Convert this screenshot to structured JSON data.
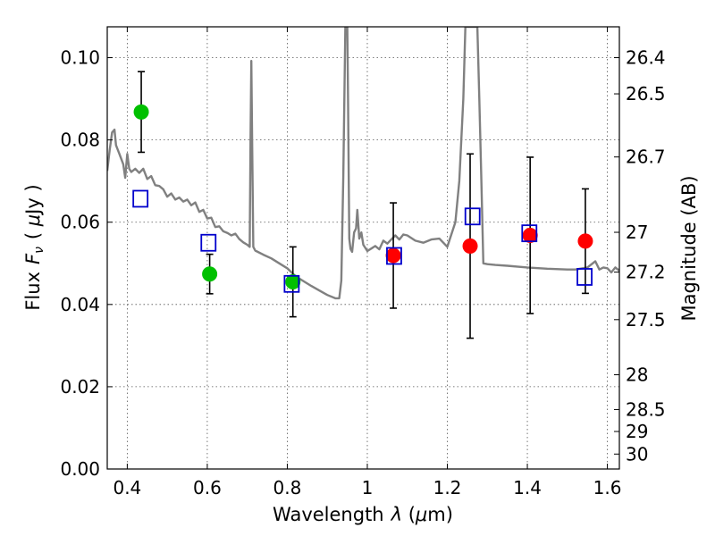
{
  "chart_data": {
    "type": "scatter",
    "xlabel": "Wavelength",
    "xlabel_symbol": "λ",
    "xlabel_unit_open": " (",
    "xlabel_unit_mu": "μ",
    "xlabel_unit_close": "m)",
    "ylabel": "Flux",
    "ylabel_symbol": "F",
    "ylabel_symbol_sub": "ν",
    "ylabel_unit_open": "( ",
    "ylabel_unit_mu": "μ",
    "ylabel_unit_close": "Jy )",
    "y2label": "Magnitude (AB)",
    "xlim": [
      0.35,
      1.63
    ],
    "ylim": [
      0.0,
      0.1075
    ],
    "grid": true,
    "x_ticks": [
      {
        "value": 0.4,
        "label": "0.4"
      },
      {
        "value": 0.6,
        "label": "0.6"
      },
      {
        "value": 0.8,
        "label": "0.8"
      },
      {
        "value": 1.0,
        "label": "1"
      },
      {
        "value": 1.2,
        "label": "1.2"
      },
      {
        "value": 1.4,
        "label": "1.4"
      },
      {
        "value": 1.6,
        "label": "1.6"
      }
    ],
    "y_ticks": [
      {
        "value": 0.0,
        "label": "0.00"
      },
      {
        "value": 0.02,
        "label": "0.02"
      },
      {
        "value": 0.04,
        "label": "0.04"
      },
      {
        "value": 0.06,
        "label": "0.06"
      },
      {
        "value": 0.08,
        "label": "0.08"
      },
      {
        "value": 0.1,
        "label": "0.10"
      }
    ],
    "y2_ticks": [
      {
        "value": 26.4,
        "label": "26.4"
      },
      {
        "value": 26.5,
        "label": "26.5"
      },
      {
        "value": 26.7,
        "label": "26.7"
      },
      {
        "value": 27.0,
        "label": "27"
      },
      {
        "value": 27.2,
        "label": "27.2"
      },
      {
        "value": 27.5,
        "label": "27.5"
      },
      {
        "value": 28.0,
        "label": "28"
      },
      {
        "value": 28.5,
        "label": "28.5"
      },
      {
        "value": 29.0,
        "label": "29"
      },
      {
        "value": 30.0,
        "label": "30"
      }
    ],
    "series": [
      {
        "marker": "filled-circle",
        "color": "#00c000",
        "points": [
          {
            "x": 0.435,
            "y": 0.0868,
            "err": 0.0098
          },
          {
            "x": 0.606,
            "y": 0.0474,
            "err": 0.0048
          },
          {
            "x": 0.814,
            "y": 0.0455,
            "err": 0.0085
          }
        ]
      },
      {
        "marker": "filled-circle",
        "color": "#ff0000",
        "points": [
          {
            "x": 1.065,
            "y": 0.0519,
            "err": 0.0128
          },
          {
            "x": 1.257,
            "y": 0.0542,
            "err": 0.0224
          },
          {
            "x": 1.407,
            "y": 0.0568,
            "err": 0.019
          },
          {
            "x": 1.545,
            "y": 0.0554,
            "err": 0.0127
          }
        ]
      },
      {
        "marker": "open-square",
        "color": "#0000cc",
        "points": [
          {
            "x": 0.433,
            "y": 0.0657
          },
          {
            "x": 0.603,
            "y": 0.055
          },
          {
            "x": 0.811,
            "y": 0.045
          },
          {
            "x": 1.067,
            "y": 0.0518
          },
          {
            "x": 1.263,
            "y": 0.0614
          },
          {
            "x": 1.405,
            "y": 0.0573
          },
          {
            "x": 1.543,
            "y": 0.0467
          }
        ]
      },
      {
        "type": "line",
        "color": "#808080",
        "x": [
          0.35,
          0.356,
          0.362,
          0.368,
          0.372,
          0.38,
          0.39,
          0.395,
          0.4,
          0.405,
          0.41,
          0.42,
          0.43,
          0.44,
          0.45,
          0.46,
          0.47,
          0.48,
          0.49,
          0.5,
          0.51,
          0.52,
          0.53,
          0.54,
          0.55,
          0.56,
          0.57,
          0.58,
          0.59,
          0.6,
          0.61,
          0.62,
          0.63,
          0.64,
          0.65,
          0.66,
          0.67,
          0.68,
          0.69,
          0.7,
          0.706,
          0.708,
          0.71,
          0.712,
          0.715,
          0.72,
          0.74,
          0.76,
          0.78,
          0.8,
          0.82,
          0.84,
          0.86,
          0.88,
          0.9,
          0.92,
          0.93,
          0.935,
          0.94,
          0.945,
          0.948,
          0.95,
          0.952,
          0.955,
          0.958,
          0.962,
          0.967,
          0.972,
          0.975,
          0.98,
          0.985,
          0.99,
          1.0,
          1.01,
          1.02,
          1.03,
          1.04,
          1.05,
          1.06,
          1.07,
          1.08,
          1.09,
          1.1,
          1.12,
          1.14,
          1.16,
          1.18,
          1.2,
          1.22,
          1.23,
          1.24,
          1.245,
          1.248,
          1.25,
          1.255,
          1.26,
          1.27,
          1.275,
          1.28,
          1.285,
          1.29,
          1.3,
          1.32,
          1.35,
          1.4,
          1.45,
          1.5,
          1.52,
          1.55,
          1.57,
          1.58,
          1.59,
          1.6,
          1.61,
          1.62,
          1.63
        ],
        "y": [
          0.0725,
          0.0775,
          0.0818,
          0.0825,
          0.0787,
          0.0767,
          0.0741,
          0.0708,
          0.0766,
          0.073,
          0.0722,
          0.073,
          0.072,
          0.073,
          0.0705,
          0.0712,
          0.069,
          0.0688,
          0.068,
          0.0662,
          0.067,
          0.0655,
          0.066,
          0.065,
          0.0655,
          0.0641,
          0.0648,
          0.0625,
          0.063,
          0.0609,
          0.0611,
          0.0588,
          0.059,
          0.0578,
          0.0574,
          0.0568,
          0.0572,
          0.0559,
          0.0551,
          0.0545,
          0.054,
          0.08,
          0.0992,
          0.08,
          0.054,
          0.0531,
          0.0521,
          0.0512,
          0.05,
          0.0488,
          0.0469,
          0.0457,
          0.0445,
          0.0434,
          0.0423,
          0.0415,
          0.0415,
          0.0458,
          0.071,
          0.1075,
          0.1075,
          0.1075,
          0.088,
          0.056,
          0.0535,
          0.0528,
          0.0575,
          0.0585,
          0.063,
          0.056,
          0.0575,
          0.0545,
          0.053,
          0.0536,
          0.0542,
          0.0534,
          0.0555,
          0.0548,
          0.0558,
          0.0568,
          0.0558,
          0.057,
          0.0568,
          0.0555,
          0.055,
          0.0558,
          0.056,
          0.054,
          0.06,
          0.07,
          0.09,
          0.1075,
          0.1075,
          0.1075,
          0.1075,
          0.1075,
          0.1075,
          0.1075,
          0.09,
          0.07,
          0.05,
          0.0498,
          0.0496,
          0.0494,
          0.049,
          0.0487,
          0.0485,
          0.0485,
          0.049,
          0.0505,
          0.0485,
          0.049,
          0.0488,
          0.0478,
          0.049,
          0.0482
        ]
      }
    ]
  }
}
